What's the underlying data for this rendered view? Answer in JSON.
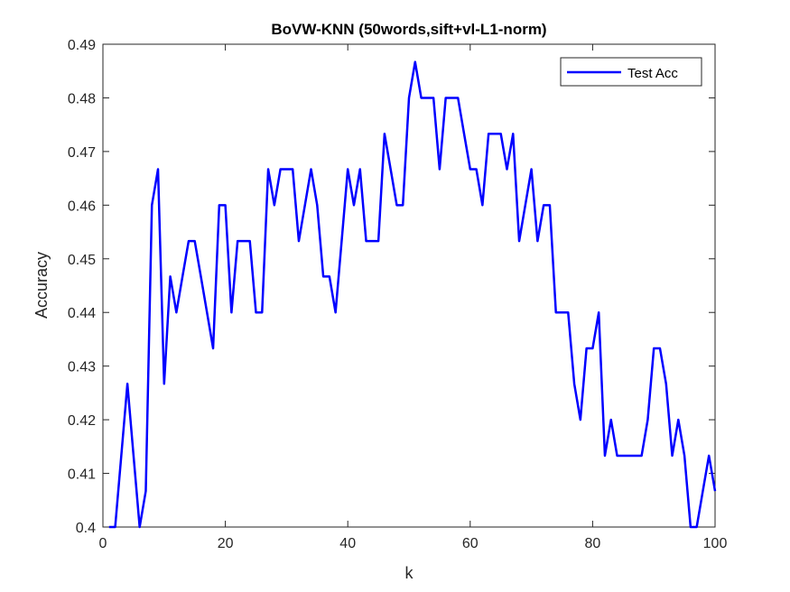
{
  "chart_data": {
    "type": "line",
    "title": "BoVW-KNN (50words,sift+vl-L1-norm)",
    "xlabel": "k",
    "ylabel": "Accuracy",
    "xlim": [
      0,
      100
    ],
    "ylim": [
      0.4,
      0.49
    ],
    "xticks": [
      0,
      20,
      40,
      60,
      80,
      100
    ],
    "yticks": [
      0.4,
      0.41,
      0.42,
      0.43,
      0.44,
      0.45,
      0.46,
      0.47,
      0.48,
      0.49
    ],
    "xtick_labels": [
      "0",
      "20",
      "40",
      "60",
      "80",
      "100"
    ],
    "ytick_labels": [
      "0.4",
      "0.41",
      "0.42",
      "0.43",
      "0.44",
      "0.45",
      "0.46",
      "0.47",
      "0.48",
      "0.49"
    ],
    "grid": false,
    "legend_position": "top-right",
    "series": [
      {
        "name": "Test Acc",
        "color": "#0000ff",
        "x": [
          1,
          2,
          3,
          4,
          5,
          6,
          7,
          8,
          9,
          10,
          11,
          12,
          13,
          14,
          15,
          16,
          17,
          18,
          19,
          20,
          21,
          22,
          23,
          24,
          25,
          26,
          27,
          28,
          29,
          30,
          31,
          32,
          33,
          34,
          35,
          36,
          37,
          38,
          39,
          40,
          41,
          42,
          43,
          44,
          45,
          46,
          47,
          48,
          49,
          50,
          51,
          52,
          53,
          54,
          55,
          56,
          57,
          58,
          59,
          60,
          61,
          62,
          63,
          64,
          65,
          66,
          67,
          68,
          69,
          70,
          71,
          72,
          73,
          74,
          75,
          76,
          77,
          78,
          79,
          80,
          81,
          82,
          83,
          84,
          85,
          86,
          87,
          88,
          89,
          90,
          91,
          92,
          93,
          94,
          95,
          96,
          97,
          98,
          99,
          100
        ],
        "y": [
          0.4,
          0.4,
          0.4133,
          0.4267,
          0.4133,
          0.4,
          0.4067,
          0.46,
          0.4667,
          0.4267,
          0.4467,
          0.44,
          0.4467,
          0.4533,
          0.4533,
          0.4467,
          0.44,
          0.4333,
          0.46,
          0.46,
          0.44,
          0.4533,
          0.4533,
          0.4533,
          0.44,
          0.44,
          0.4667,
          0.46,
          0.4667,
          0.4667,
          0.4667,
          0.4533,
          0.46,
          0.4667,
          0.46,
          0.4467,
          0.4467,
          0.44,
          0.4533,
          0.4667,
          0.46,
          0.4667,
          0.4533,
          0.4533,
          0.4533,
          0.4733,
          0.4667,
          0.46,
          0.46,
          0.48,
          0.4867,
          0.48,
          0.48,
          0.48,
          0.4667,
          0.48,
          0.48,
          0.48,
          0.4733,
          0.4667,
          0.4667,
          0.46,
          0.4733,
          0.4733,
          0.4733,
          0.4667,
          0.4733,
          0.4533,
          0.46,
          0.4667,
          0.4533,
          0.46,
          0.46,
          0.44,
          0.44,
          0.44,
          0.4267,
          0.42,
          0.4333,
          0.4333,
          0.44,
          0.4133,
          0.42,
          0.4133,
          0.4133,
          0.4133,
          0.4133,
          0.4133,
          0.42,
          0.4333,
          0.4333,
          0.4267,
          0.4133,
          0.42,
          0.4133,
          0.4,
          0.4,
          0.4067,
          0.4133,
          0.4067
        ]
      }
    ]
  }
}
